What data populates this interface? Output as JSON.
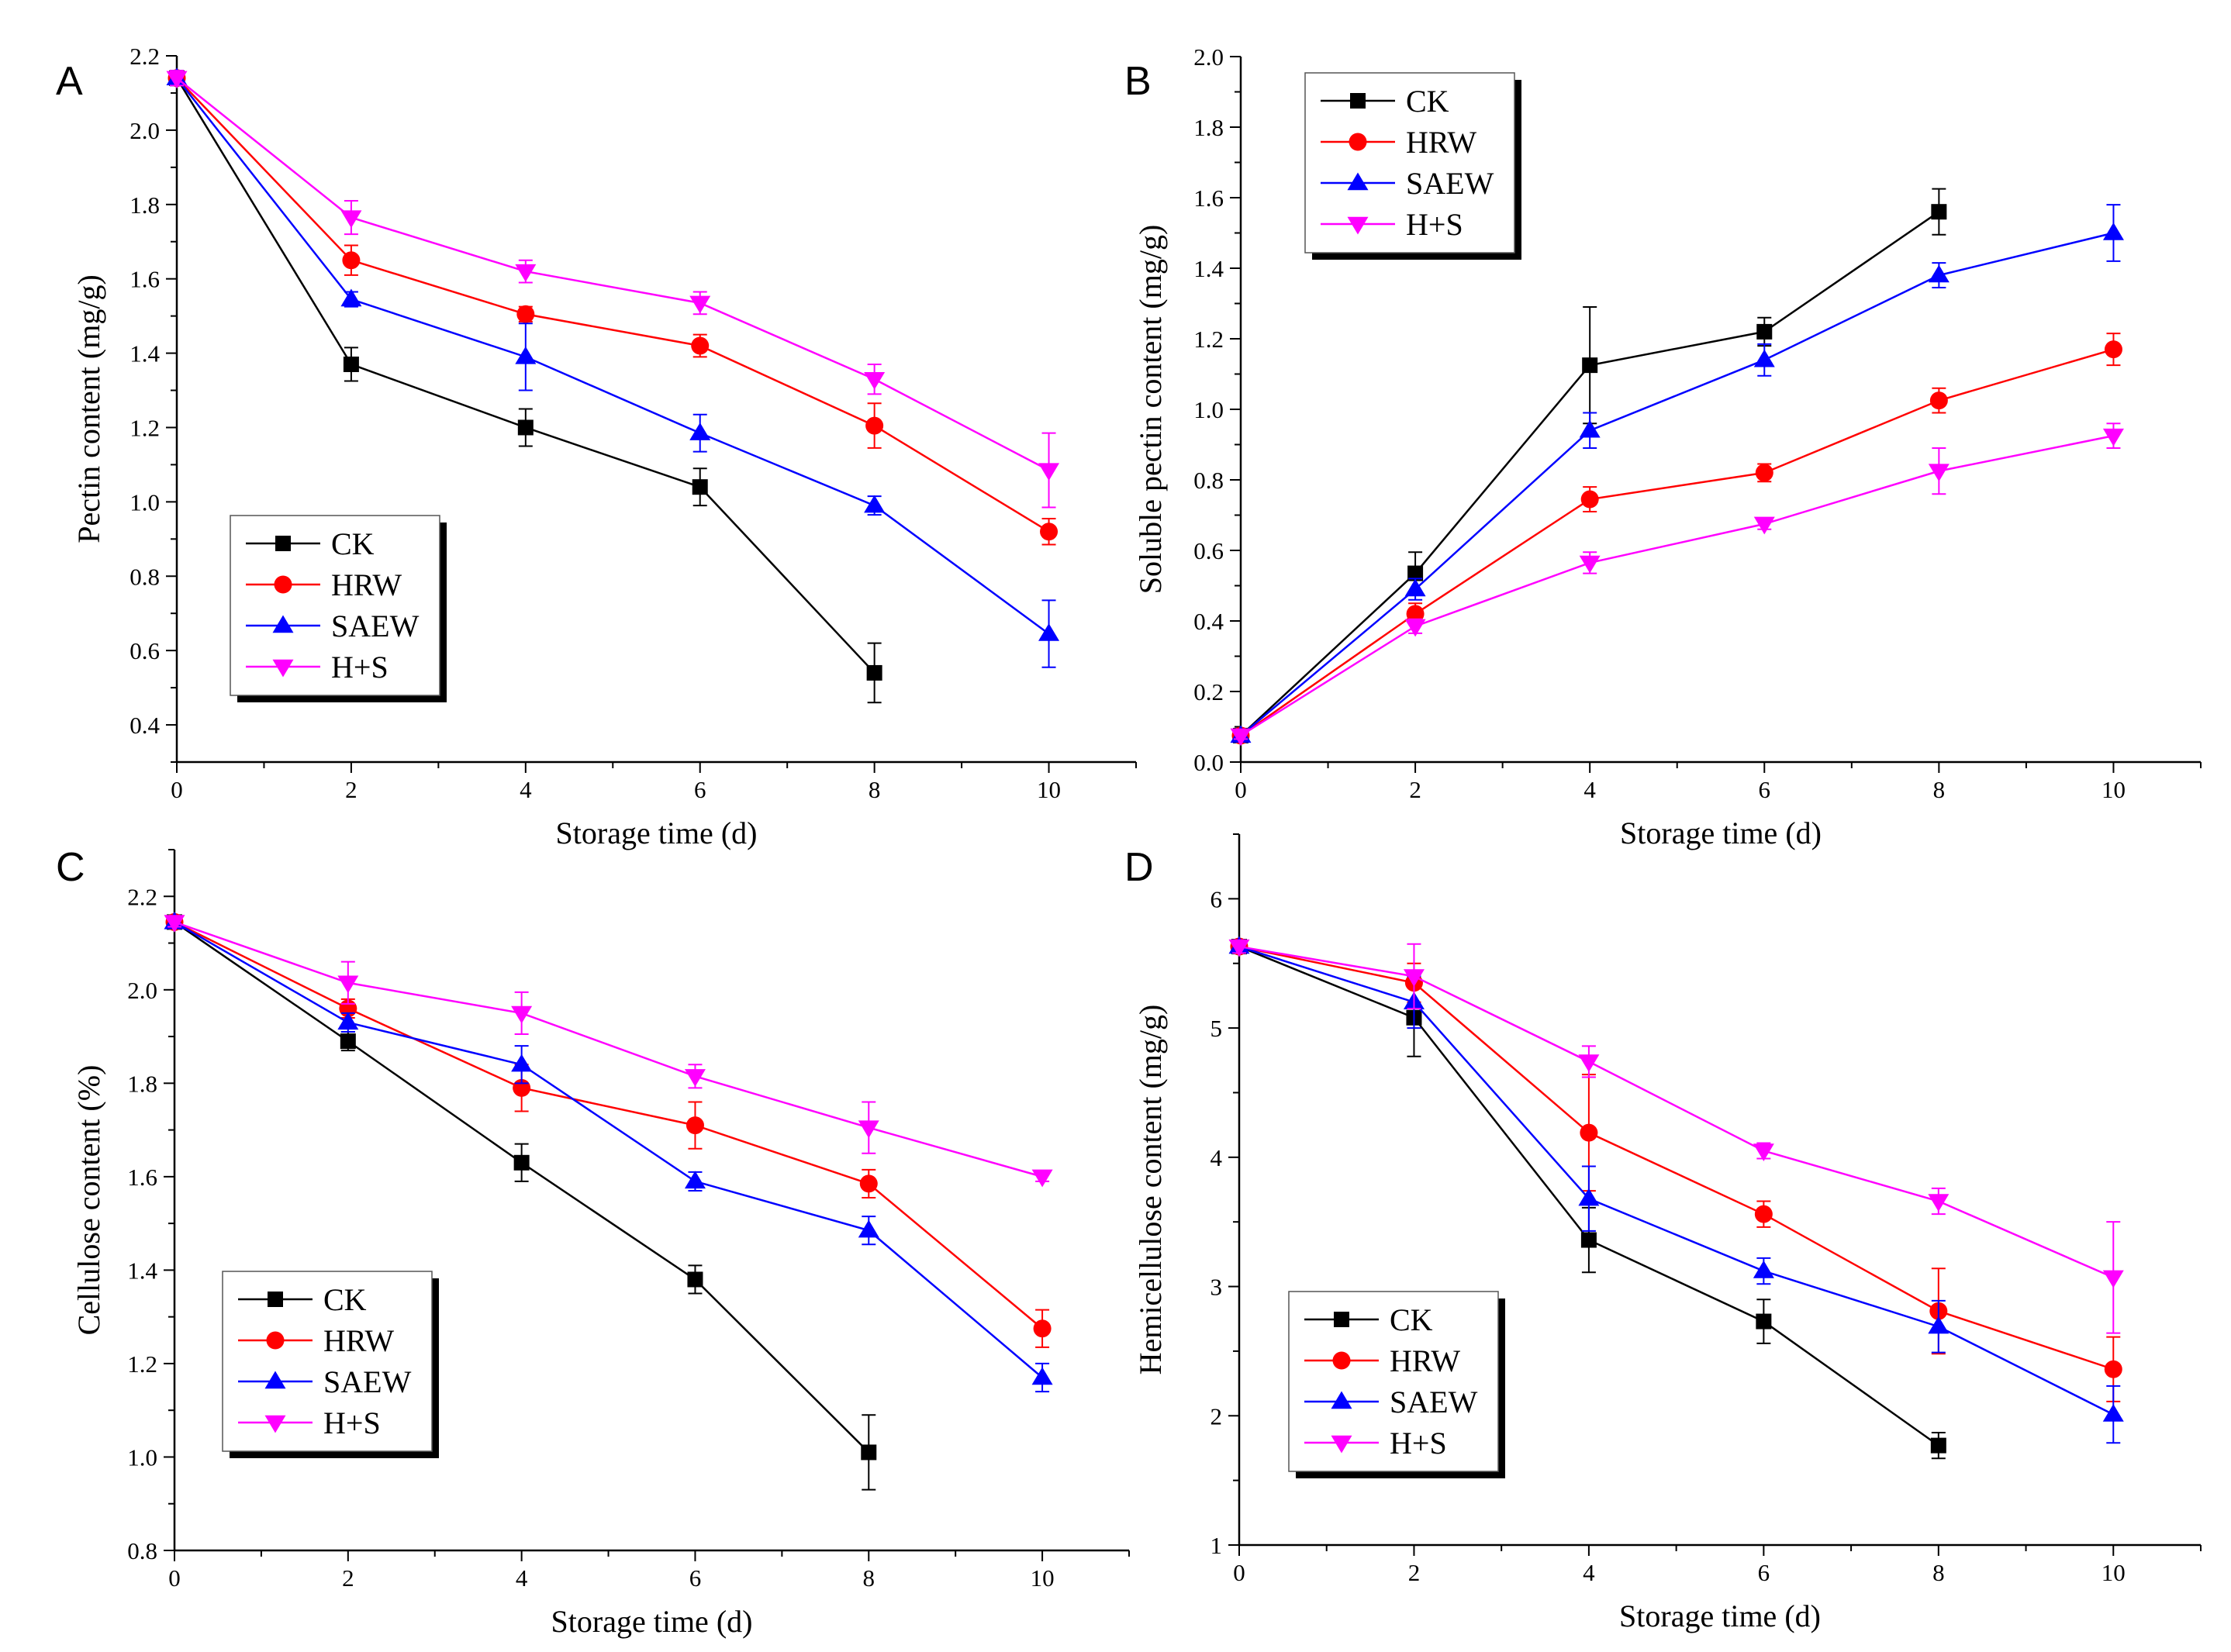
{
  "figure": {
    "colors": {
      "CK": "#000000",
      "HRW": "#ff0000",
      "SAEW": "#0000ff",
      "H+S": "#ff00ff"
    },
    "markers": {
      "CK": "square",
      "HRW": "circle",
      "SAEW": "triangle-up",
      "H+S": "triangle-down"
    }
  },
  "chart_data": [
    {
      "panel": "A",
      "type": "line",
      "title": "",
      "xlabel": "Storage time (d)",
      "ylabel": "Pectin content (mg/g)",
      "xlim": [
        0,
        11
      ],
      "ylim": [
        0.3,
        2.2
      ],
      "xticks": [
        0,
        2,
        4,
        6,
        8,
        10
      ],
      "xtick_labels": [
        "0",
        "2",
        "4",
        "6",
        "8",
        "10"
      ],
      "yticks": [
        0.4,
        0.6,
        0.8,
        1.0,
        1.2,
        1.4,
        1.6,
        1.8,
        2.0,
        2.2
      ],
      "ytick_labels": [
        "0.4",
        "0.6",
        "0.8",
        "1.0",
        "1.2",
        "1.4",
        "1.6",
        "1.8",
        "2.0",
        "2.2"
      ],
      "legend_position": "bottom-left",
      "series": [
        {
          "name": "CK",
          "x": [
            0,
            2,
            4,
            6,
            8
          ],
          "values": [
            2.14,
            1.37,
            1.2,
            1.04,
            0.54
          ],
          "errors": [
            0.02,
            0.045,
            0.05,
            0.05,
            0.08
          ]
        },
        {
          "name": "HRW",
          "x": [
            0,
            2,
            4,
            6,
            8,
            10
          ],
          "values": [
            2.14,
            1.65,
            1.505,
            1.42,
            1.205,
            0.92
          ],
          "errors": [
            0.02,
            0.04,
            0.02,
            0.03,
            0.06,
            0.035
          ]
        },
        {
          "name": "SAEW",
          "x": [
            0,
            2,
            4,
            6,
            8,
            10
          ],
          "values": [
            2.14,
            1.545,
            1.39,
            1.185,
            0.99,
            0.645
          ],
          "errors": [
            0.02,
            0.02,
            0.09,
            0.05,
            0.025,
            0.09
          ]
        },
        {
          "name": "H+S",
          "x": [
            0,
            2,
            4,
            6,
            8,
            10
          ],
          "values": [
            2.14,
            1.765,
            1.62,
            1.535,
            1.33,
            1.085
          ],
          "errors": [
            0.02,
            0.045,
            0.03,
            0.03,
            0.04,
            0.1
          ]
        }
      ]
    },
    {
      "panel": "B",
      "type": "line",
      "title": "",
      "xlabel": "Storage time (d)",
      "ylabel": "Soluble pectin content (mg/g)",
      "xlim": [
        0,
        11
      ],
      "ylim": [
        0,
        2.0
      ],
      "xticks": [
        0,
        2,
        4,
        6,
        8,
        10
      ],
      "xtick_labels": [
        "0",
        "2",
        "4",
        "6",
        "8",
        "10"
      ],
      "yticks": [
        0.0,
        0.2,
        0.4,
        0.6,
        0.8,
        1.0,
        1.2,
        1.4,
        1.6,
        1.8,
        2.0
      ],
      "ytick_labels": [
        "0.0",
        "0.2",
        "0.4",
        "0.6",
        "0.8",
        "1.0",
        "1.2",
        "1.4",
        "1.6",
        "1.8",
        "2.0"
      ],
      "legend_position": "top-left",
      "series": [
        {
          "name": "CK",
          "x": [
            0,
            2,
            4,
            6,
            8
          ],
          "values": [
            0.075,
            0.535,
            1.125,
            1.22,
            1.56
          ],
          "errors": [
            0.01,
            0.06,
            0.165,
            0.04,
            0.065
          ]
        },
        {
          "name": "HRW",
          "x": [
            0,
            2,
            4,
            6,
            8,
            10
          ],
          "values": [
            0.075,
            0.42,
            0.745,
            0.82,
            1.025,
            1.17
          ],
          "errors": [
            0.01,
            0.03,
            0.035,
            0.025,
            0.035,
            0.045
          ]
        },
        {
          "name": "SAEW",
          "x": [
            0,
            2,
            4,
            6,
            8,
            10
          ],
          "values": [
            0.075,
            0.49,
            0.94,
            1.14,
            1.38,
            1.5
          ],
          "errors": [
            0.01,
            0.03,
            0.05,
            0.045,
            0.035,
            0.08
          ]
        },
        {
          "name": "H+S",
          "x": [
            0,
            2,
            4,
            6,
            8,
            10
          ],
          "values": [
            0.075,
            0.385,
            0.565,
            0.675,
            0.825,
            0.925
          ],
          "errors": [
            0.01,
            0.02,
            0.03,
            0.015,
            0.065,
            0.035
          ]
        }
      ]
    },
    {
      "panel": "C",
      "type": "line",
      "title": "",
      "xlabel": "Storage time (d)",
      "ylabel": "Cellulose content (%)",
      "xlim": [
        0,
        11
      ],
      "ylim": [
        0.8,
        2.3
      ],
      "xticks": [
        0,
        2,
        4,
        6,
        8,
        10
      ],
      "xtick_labels": [
        "0",
        "2",
        "4",
        "6",
        "8",
        "10"
      ],
      "yticks": [
        0.8,
        1.0,
        1.2,
        1.4,
        1.6,
        1.8,
        2.0,
        2.2
      ],
      "ytick_labels": [
        "0.8",
        "1.0",
        "1.2",
        "1.4",
        "1.6",
        "1.8",
        "2.0",
        "2.2"
      ],
      "legend_position": "bottom-left",
      "series": [
        {
          "name": "CK",
          "x": [
            0,
            2,
            4,
            6,
            8
          ],
          "values": [
            2.145,
            1.89,
            1.63,
            1.38,
            1.01
          ],
          "errors": [
            0.01,
            0.02,
            0.04,
            0.03,
            0.08
          ]
        },
        {
          "name": "HRW",
          "x": [
            0,
            2,
            4,
            6,
            8,
            10
          ],
          "values": [
            2.145,
            1.96,
            1.79,
            1.71,
            1.585,
            1.275
          ],
          "errors": [
            0.01,
            0.02,
            0.05,
            0.05,
            0.03,
            0.04
          ]
        },
        {
          "name": "SAEW",
          "x": [
            0,
            2,
            4,
            6,
            8,
            10
          ],
          "values": [
            2.145,
            1.93,
            1.84,
            1.59,
            1.485,
            1.17
          ],
          "errors": [
            0.01,
            0.02,
            0.04,
            0.02,
            0.03,
            0.03
          ]
        },
        {
          "name": "H+S",
          "x": [
            0,
            2,
            4,
            6,
            8,
            10
          ],
          "values": [
            2.145,
            2.015,
            1.95,
            1.815,
            1.705,
            1.6
          ],
          "errors": [
            0.01,
            0.045,
            0.045,
            0.025,
            0.055,
            0.01
          ]
        }
      ]
    },
    {
      "panel": "D",
      "type": "line",
      "title": "",
      "xlabel": "Storage time (d)",
      "ylabel": "Hemicellulose content (mg/g)",
      "xlim": [
        0,
        11
      ],
      "ylim": [
        1,
        6.5
      ],
      "xticks": [
        0,
        2,
        4,
        6,
        8,
        10
      ],
      "xtick_labels": [
        "0",
        "2",
        "4",
        "6",
        "8",
        "10"
      ],
      "yticks": [
        1,
        2,
        3,
        4,
        5,
        6
      ],
      "ytick_labels": [
        "1",
        "2",
        "3",
        "4",
        "5",
        "6"
      ],
      "legend_position": "bottom-left",
      "series": [
        {
          "name": "CK",
          "x": [
            0,
            2,
            4,
            6,
            8
          ],
          "values": [
            5.63,
            5.08,
            3.36,
            2.73,
            1.77
          ],
          "errors": [
            0.05,
            0.3,
            0.25,
            0.17,
            0.1
          ]
        },
        {
          "name": "HRW",
          "x": [
            0,
            2,
            4,
            6,
            8,
            10
          ],
          "values": [
            5.63,
            5.35,
            4.19,
            3.56,
            2.81,
            2.36
          ],
          "errors": [
            0.05,
            0.15,
            0.45,
            0.1,
            0.33,
            0.25
          ]
        },
        {
          "name": "SAEW",
          "x": [
            0,
            2,
            4,
            6,
            8,
            10
          ],
          "values": [
            5.63,
            5.2,
            3.68,
            3.12,
            2.69,
            2.01
          ],
          "errors": [
            0.05,
            0.2,
            0.25,
            0.1,
            0.2,
            0.22
          ]
        },
        {
          "name": "H+S",
          "x": [
            0,
            2,
            4,
            6,
            8,
            10
          ],
          "values": [
            5.63,
            5.4,
            4.74,
            4.05,
            3.66,
            3.07
          ],
          "errors": [
            0.05,
            0.25,
            0.12,
            0.06,
            0.1,
            0.43
          ]
        }
      ]
    }
  ]
}
